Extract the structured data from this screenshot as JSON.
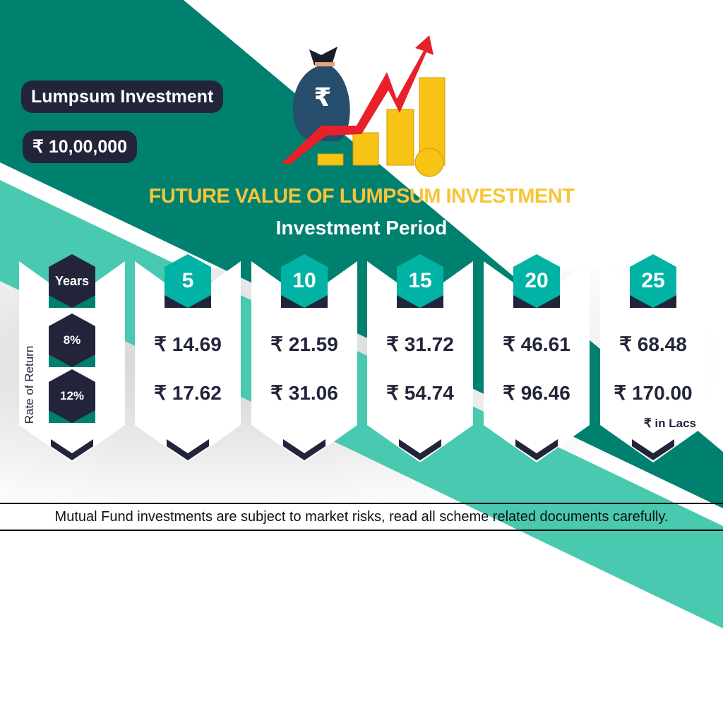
{
  "colors": {
    "dark_teal": "#00806f",
    "light_teal": "#48c9b0",
    "hex_teal": "#00b3a4",
    "navy": "#22253a",
    "title_yellow": "#f8c43a",
    "arrow_red": "#e8202a",
    "coin_gold": "#f7c415"
  },
  "header": {
    "investment_label": "Lumpsum Investment",
    "investment_amount": "₹ 10,00,000",
    "rupee_symbol": "₹"
  },
  "title": "FUTURE VALUE OF LUMPSUM INVESTMENT",
  "subtitle": "Investment Period",
  "table": {
    "years_label": "Years",
    "rate_axis_label": "Rate of Return",
    "rates": [
      "8%",
      "12%"
    ],
    "columns": [
      {
        "years": "5",
        "values": [
          "₹ 14.69",
          "₹ 17.62"
        ]
      },
      {
        "years": "10",
        "values": [
          "₹ 21.59",
          "₹ 31.06"
        ]
      },
      {
        "years": "15",
        "values": [
          "₹ 31.72",
          "₹ 54.74"
        ]
      },
      {
        "years": "20",
        "values": [
          "₹ 46.61",
          "₹ 96.46"
        ]
      },
      {
        "years": "25",
        "values": [
          "₹ 68.48",
          "₹ 170.00"
        ]
      }
    ],
    "unit_note": "₹ in Lacs"
  },
  "disclaimer": "Mutual Fund investments are subject to market risks, read all scheme related documents carefully.",
  "icons": [
    "money-bag-icon",
    "growth-arrow-icon",
    "coin-stack-icon"
  ]
}
